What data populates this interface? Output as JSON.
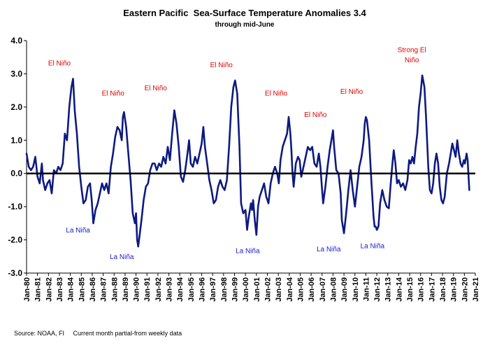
{
  "chart_data": {
    "type": "line",
    "title": "Eastern Pacific  Sea-Surface Temperature Anomalies 3.4",
    "subtitle": "through mid-June",
    "source": "Source: NOAA, FI     Current month partial-from weekly data",
    "xlabel": "",
    "ylabel": "",
    "ylim": [
      -3.0,
      4.0
    ],
    "yticks": [
      "4.0",
      "3.0",
      "2.0",
      "1.0",
      "0.0",
      "-1.0",
      "-2.0",
      "-3.0"
    ],
    "xlim": [
      1980,
      2021
    ],
    "xticks": [
      "Jan-80",
      "Jan-81",
      "Jan-82",
      "Jan-83",
      "Jan-84",
      "Jan-85",
      "Jan-86",
      "Jan-87",
      "Jan-88",
      "Jan-89",
      "Jan-90",
      "Jan-91",
      "Jan-92",
      "Jan-93",
      "Jan-94",
      "Jan-95",
      "Jan-96",
      "Jan-97",
      "Jan-98",
      "Jan-99",
      "Jan-00",
      "Jan-01",
      "Jan-02",
      "Jan-03",
      "Jan-04",
      "Jan-05",
      "Jan-06",
      "Jan-07",
      "Jan-08",
      "Jan-09",
      "Jan-10",
      "Jan-11",
      "Jan-12",
      "Jan-13",
      "Jan-14",
      "Jan-15",
      "Jan-16",
      "Jan-17",
      "Jan-18",
      "Jan-19",
      "Jan-20",
      "Jan-21"
    ],
    "series_color": "#0d1a80",
    "zero_line_color": "#000000",
    "annotations": [
      {
        "text": "El Niño",
        "x": 1983.0,
        "y": 3.25,
        "kind": "nino"
      },
      {
        "text": "El Niño",
        "x": 1987.9,
        "y": 2.35,
        "kind": "nino"
      },
      {
        "text": "El Niño",
        "x": 1991.8,
        "y": 2.5,
        "kind": "nino"
      },
      {
        "text": "El Niño",
        "x": 1997.8,
        "y": 3.2,
        "kind": "nino"
      },
      {
        "text": "El Niño",
        "x": 2002.8,
        "y": 2.35,
        "kind": "nino"
      },
      {
        "text": "El Niño",
        "x": 2006.4,
        "y": 1.7,
        "kind": "nino"
      },
      {
        "text": "El Niño",
        "x": 2009.7,
        "y": 2.4,
        "kind": "nino"
      },
      {
        "text": "Strong El",
        "x": 2015.2,
        "y": 3.65,
        "kind": "nino"
      },
      {
        "text": "Niño",
        "x": 2015.2,
        "y": 3.35,
        "kind": "nino"
      },
      {
        "text": "La Niña",
        "x": 1984.7,
        "y": -1.78,
        "kind": "nina"
      },
      {
        "text": "La Niña",
        "x": 1988.7,
        "y": -2.58,
        "kind": "nina"
      },
      {
        "text": "La Niña",
        "x": 2000.2,
        "y": -2.4,
        "kind": "nina"
      },
      {
        "text": "La Niña",
        "x": 2007.6,
        "y": -2.35,
        "kind": "nina"
      },
      {
        "text": "La Niña",
        "x": 2011.6,
        "y": -2.25,
        "kind": "nina"
      }
    ],
    "series": [
      {
        "values": [
          [
            1980.0,
            0.6
          ],
          [
            1980.2,
            0.2
          ],
          [
            1980.4,
            0.1
          ],
          [
            1980.6,
            0.2
          ],
          [
            1980.8,
            0.5
          ],
          [
            1981.0,
            -0.1
          ],
          [
            1981.2,
            -0.3
          ],
          [
            1981.4,
            0.3
          ],
          [
            1981.5,
            -0.2
          ],
          [
            1981.7,
            -0.5
          ],
          [
            1981.9,
            -0.3
          ],
          [
            1982.1,
            -0.2
          ],
          [
            1982.3,
            -0.6
          ],
          [
            1982.5,
            0.1
          ],
          [
            1982.7,
            0.0
          ],
          [
            1982.9,
            0.2
          ],
          [
            1983.1,
            0.1
          ],
          [
            1983.3,
            0.3
          ],
          [
            1983.5,
            1.2
          ],
          [
            1983.7,
            1.0
          ],
          [
            1983.9,
            2.0
          ],
          [
            1984.1,
            2.6
          ],
          [
            1984.25,
            2.85
          ],
          [
            1984.4,
            1.9
          ],
          [
            1984.6,
            1.2
          ],
          [
            1984.8,
            0.2
          ],
          [
            1985.0,
            -0.4
          ],
          [
            1985.2,
            -0.9
          ],
          [
            1985.4,
            -0.8
          ],
          [
            1985.6,
            -0.4
          ],
          [
            1985.8,
            -0.3
          ],
          [
            1985.95,
            -0.8
          ],
          [
            1986.1,
            -1.5
          ],
          [
            1986.3,
            -1.1
          ],
          [
            1986.5,
            -0.9
          ],
          [
            1986.7,
            -0.6
          ],
          [
            1986.9,
            -0.3
          ],
          [
            1987.1,
            -0.5
          ],
          [
            1987.3,
            -0.3
          ],
          [
            1987.5,
            -0.6
          ],
          [
            1987.7,
            0.2
          ],
          [
            1987.9,
            0.6
          ],
          [
            1988.1,
            1.1
          ],
          [
            1988.3,
            1.4
          ],
          [
            1988.5,
            1.3
          ],
          [
            1988.7,
            1.0
          ],
          [
            1988.8,
            1.7
          ],
          [
            1988.9,
            1.85
          ],
          [
            1989.1,
            1.4
          ],
          [
            1989.3,
            0.6
          ],
          [
            1989.5,
            -0.2
          ],
          [
            1989.7,
            -1.2
          ],
          [
            1989.9,
            -1.5
          ],
          [
            1990.0,
            -1.2
          ],
          [
            1990.1,
            -2.0
          ],
          [
            1990.2,
            -2.2
          ],
          [
            1990.35,
            -1.8
          ],
          [
            1990.5,
            -1.4
          ],
          [
            1990.7,
            -0.8
          ],
          [
            1990.9,
            -0.4
          ],
          [
            1991.1,
            -0.3
          ],
          [
            1991.3,
            0.1
          ],
          [
            1991.5,
            0.3
          ],
          [
            1991.7,
            0.3
          ],
          [
            1991.9,
            0.1
          ],
          [
            1992.1,
            0.3
          ],
          [
            1992.3,
            0.2
          ],
          [
            1992.5,
            0.5
          ],
          [
            1992.7,
            0.3
          ],
          [
            1992.9,
            0.8
          ],
          [
            1993.1,
            0.4
          ],
          [
            1993.3,
            1.2
          ],
          [
            1993.5,
            1.9
          ],
          [
            1993.7,
            1.5
          ],
          [
            1993.9,
            0.8
          ],
          [
            1994.1,
            -0.1
          ],
          [
            1994.3,
            -0.25
          ],
          [
            1994.5,
            0.1
          ],
          [
            1994.7,
            0.6
          ],
          [
            1994.85,
            1.0
          ],
          [
            1995.0,
            0.3
          ],
          [
            1995.2,
            0.2
          ],
          [
            1995.4,
            0.5
          ],
          [
            1995.6,
            0.3
          ],
          [
            1995.8,
            0.6
          ],
          [
            1996.0,
            0.9
          ],
          [
            1996.15,
            1.4
          ],
          [
            1996.3,
            0.8
          ],
          [
            1996.5,
            0.3
          ],
          [
            1996.7,
            -0.2
          ],
          [
            1996.9,
            -0.5
          ],
          [
            1997.1,
            -0.9
          ],
          [
            1997.3,
            -0.8
          ],
          [
            1997.5,
            -0.4
          ],
          [
            1997.7,
            -0.2
          ],
          [
            1997.9,
            -0.4
          ],
          [
            1998.1,
            -0.5
          ],
          [
            1998.3,
            -0.2
          ],
          [
            1998.5,
            0.8
          ],
          [
            1998.7,
            2.0
          ],
          [
            1998.9,
            2.6
          ],
          [
            1999.05,
            2.8
          ],
          [
            1999.25,
            2.4
          ],
          [
            1999.45,
            0.8
          ],
          [
            1999.6,
            -0.9
          ],
          [
            1999.8,
            -1.2
          ],
          [
            2000.0,
            -1.1
          ],
          [
            2000.15,
            -1.7
          ],
          [
            2000.3,
            -1.3
          ],
          [
            2000.5,
            -0.9
          ],
          [
            2000.6,
            -1.1
          ],
          [
            2000.7,
            -0.8
          ],
          [
            2000.85,
            -1.4
          ],
          [
            2001.0,
            -1.85
          ],
          [
            2001.15,
            -1.0
          ],
          [
            2001.3,
            -0.7
          ],
          [
            2001.5,
            -0.5
          ],
          [
            2001.7,
            -0.3
          ],
          [
            2001.9,
            -0.7
          ],
          [
            2002.1,
            -0.9
          ],
          [
            2002.3,
            -0.3
          ],
          [
            2002.5,
            0.0
          ],
          [
            2002.7,
            0.2
          ],
          [
            2002.9,
            0.0
          ],
          [
            2003.05,
            -0.3
          ],
          [
            2003.2,
            0.4
          ],
          [
            2003.4,
            0.8
          ],
          [
            2003.6,
            1.0
          ],
          [
            2003.8,
            1.2
          ],
          [
            2003.95,
            1.7
          ],
          [
            2004.1,
            1.2
          ],
          [
            2004.2,
            0.7
          ],
          [
            2004.3,
            0.0
          ],
          [
            2004.4,
            -0.4
          ],
          [
            2004.6,
            0.3
          ],
          [
            2004.8,
            0.5
          ],
          [
            2004.95,
            0.4
          ],
          [
            2005.1,
            -0.1
          ],
          [
            2005.3,
            0.2
          ],
          [
            2005.5,
            0.5
          ],
          [
            2005.7,
            0.8
          ],
          [
            2005.9,
            0.7
          ],
          [
            2006.1,
            0.8
          ],
          [
            2006.3,
            0.3
          ],
          [
            2006.5,
            0.2
          ],
          [
            2006.7,
            0.6
          ],
          [
            2006.85,
            0.2
          ],
          [
            2007.0,
            -0.5
          ],
          [
            2007.1,
            -0.9
          ],
          [
            2007.3,
            -0.4
          ],
          [
            2007.5,
            0.2
          ],
          [
            2007.7,
            0.7
          ],
          [
            2007.9,
            1.1
          ],
          [
            2008.0,
            1.3
          ],
          [
            2008.1,
            0.8
          ],
          [
            2008.3,
            0.1
          ],
          [
            2008.5,
            0.0
          ],
          [
            2008.7,
            -0.6
          ],
          [
            2008.8,
            -1.4
          ],
          [
            2008.9,
            -1.6
          ],
          [
            2009.0,
            -1.8
          ],
          [
            2009.2,
            -1.2
          ],
          [
            2009.4,
            -0.5
          ],
          [
            2009.6,
            0.1
          ],
          [
            2009.8,
            -0.5
          ],
          [
            2010.0,
            -1.0
          ],
          [
            2010.2,
            -0.4
          ],
          [
            2010.4,
            0.2
          ],
          [
            2010.6,
            0.5
          ],
          [
            2010.8,
            1.0
          ],
          [
            2010.9,
            1.5
          ],
          [
            2011.0,
            1.7
          ],
          [
            2011.1,
            1.6
          ],
          [
            2011.3,
            1.0
          ],
          [
            2011.5,
            -0.2
          ],
          [
            2011.7,
            -1.3
          ],
          [
            2011.8,
            -1.6
          ],
          [
            2011.9,
            -1.6
          ],
          [
            2012.0,
            -1.7
          ],
          [
            2012.15,
            -1.6
          ],
          [
            2012.3,
            -0.9
          ],
          [
            2012.5,
            -0.5
          ],
          [
            2012.7,
            -0.8
          ],
          [
            2012.9,
            -1.0
          ],
          [
            2013.1,
            -1.05
          ],
          [
            2013.25,
            -0.4
          ],
          [
            2013.4,
            0.2
          ],
          [
            2013.55,
            0.7
          ],
          [
            2013.7,
            0.3
          ],
          [
            2013.85,
            -0.3
          ],
          [
            2014.0,
            -0.2
          ],
          [
            2014.2,
            -0.4
          ],
          [
            2014.4,
            -0.3
          ],
          [
            2014.6,
            -0.5
          ],
          [
            2014.8,
            -0.2
          ],
          [
            2014.95,
            0.4
          ],
          [
            2015.1,
            0.3
          ],
          [
            2015.25,
            0.5
          ],
          [
            2015.4,
            0.3
          ],
          [
            2015.55,
            0.8
          ],
          [
            2015.7,
            1.2
          ],
          [
            2015.85,
            2.0
          ],
          [
            2016.0,
            2.4
          ],
          [
            2016.15,
            2.95
          ],
          [
            2016.35,
            2.6
          ],
          [
            2016.5,
            1.7
          ],
          [
            2016.7,
            0.2
          ],
          [
            2016.85,
            -0.5
          ],
          [
            2017.0,
            -0.6
          ],
          [
            2017.15,
            -0.3
          ],
          [
            2017.3,
            0.3
          ],
          [
            2017.45,
            0.6
          ],
          [
            2017.6,
            0.3
          ],
          [
            2017.75,
            -0.4
          ],
          [
            2017.9,
            -0.8
          ],
          [
            2018.05,
            -0.9
          ],
          [
            2018.2,
            -0.7
          ],
          [
            2018.4,
            0.0
          ],
          [
            2018.6,
            0.3
          ],
          [
            2018.75,
            0.6
          ],
          [
            2018.9,
            0.9
          ],
          [
            2019.05,
            0.7
          ],
          [
            2019.2,
            0.5
          ],
          [
            2019.35,
            1.0
          ],
          [
            2019.5,
            0.6
          ],
          [
            2019.65,
            0.3
          ],
          [
            2019.8,
            0.2
          ],
          [
            2019.95,
            0.4
          ],
          [
            2020.05,
            0.3
          ],
          [
            2020.2,
            0.6
          ],
          [
            2020.3,
            0.4
          ],
          [
            2020.45,
            -0.5
          ]
        ]
      }
    ]
  }
}
